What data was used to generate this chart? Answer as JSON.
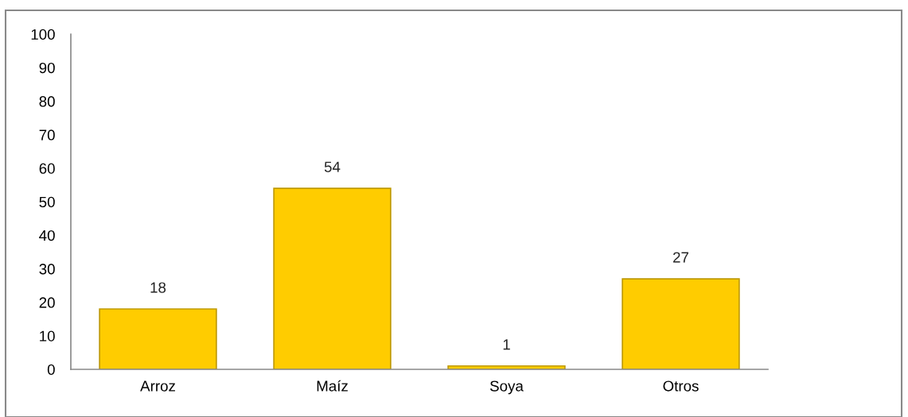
{
  "chart_data": {
    "type": "bar",
    "categories": [
      "Arroz",
      "Maíz",
      "Soya",
      "Otros"
    ],
    "values": [
      18,
      54,
      1,
      27
    ],
    "color": "#ffcc00",
    "ylim": [
      0,
      100
    ],
    "yticks": [
      0,
      10,
      20,
      30,
      40,
      50,
      60,
      70,
      80,
      90,
      100
    ],
    "data_labels": true,
    "grid": false,
    "legend": false
  }
}
